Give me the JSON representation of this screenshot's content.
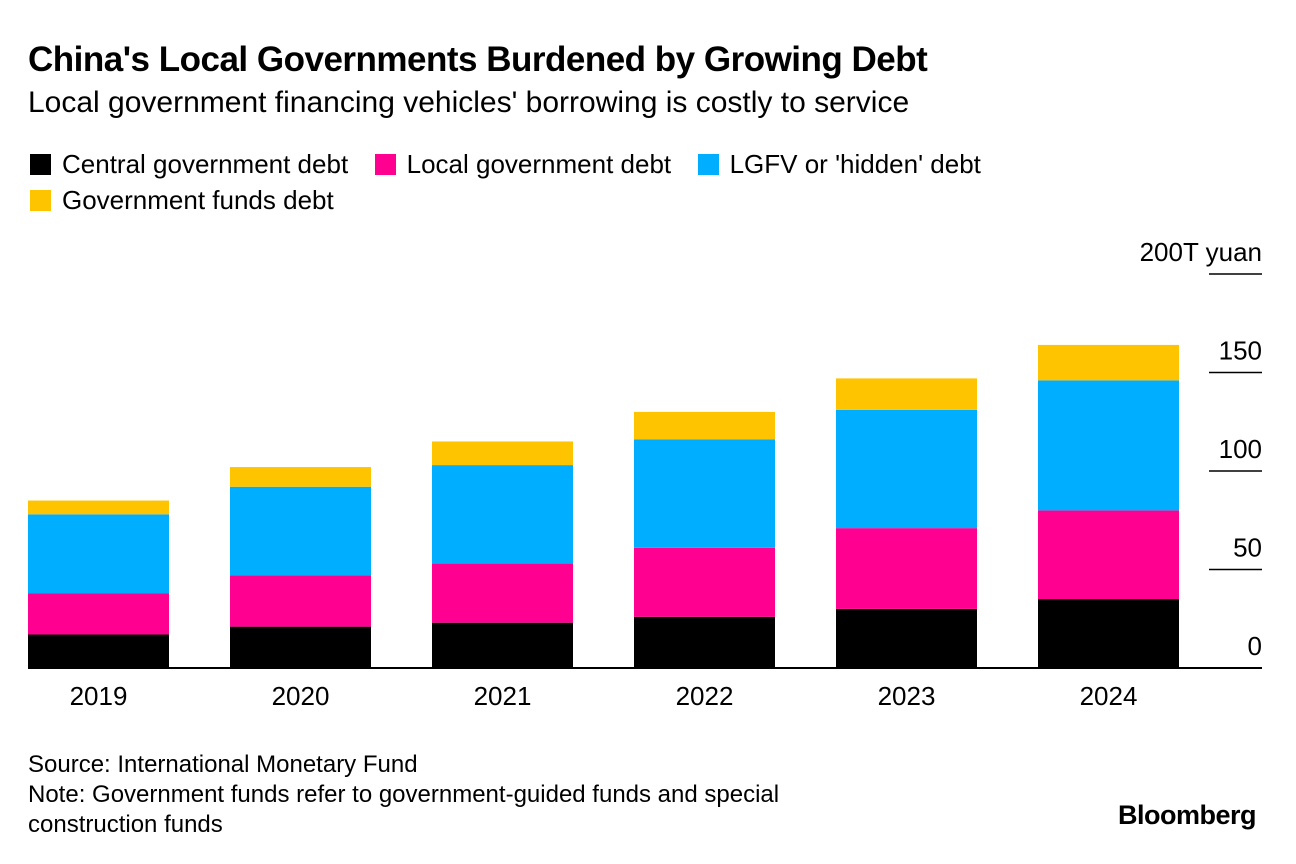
{
  "title": "China's Local Governments Burdened by Growing Debt",
  "subtitle": "Local government financing vehicles' borrowing is costly to service",
  "colors": {
    "central": "#000000",
    "local": "#ff0091",
    "lgfv": "#00aeff",
    "funds": "#ffc400"
  },
  "chart_data": {
    "type": "bar",
    "stacked": true,
    "title": "China's Local Governments Burdened by Growing Debt",
    "categories": [
      "2019",
      "2020",
      "2021",
      "2022",
      "2023",
      "2024"
    ],
    "series": [
      {
        "name": "Central government debt",
        "color_key": "central",
        "values": [
          17,
          21,
          23,
          26,
          30,
          35
        ]
      },
      {
        "name": "Local government debt",
        "color_key": "local",
        "values": [
          21,
          26,
          30,
          35,
          41,
          45
        ]
      },
      {
        "name": "LGFV or 'hidden' debt",
        "color_key": "lgfv",
        "values": [
          40,
          45,
          50,
          55,
          60,
          66
        ]
      },
      {
        "name": "Government funds debt",
        "color_key": "funds",
        "values": [
          7,
          10,
          12,
          14,
          16,
          18
        ]
      }
    ],
    "y_unit_label": "200T yuan",
    "y_ticks": [
      {
        "value": 0,
        "label": "0"
      },
      {
        "value": 50,
        "label": "50"
      },
      {
        "value": 100,
        "label": "100"
      },
      {
        "value": 150,
        "label": "150"
      },
      {
        "value": 200,
        "label": "200T yuan"
      }
    ],
    "ylim": [
      0,
      200
    ],
    "xlabel": "",
    "ylabel": "",
    "legend_position": "top-left"
  },
  "footer": {
    "source": "Source: International Monetary Fund",
    "note_line1": "Note: Government funds refer to government-guided funds and special",
    "note_line2": "construction funds"
  },
  "brand": "Bloomberg"
}
